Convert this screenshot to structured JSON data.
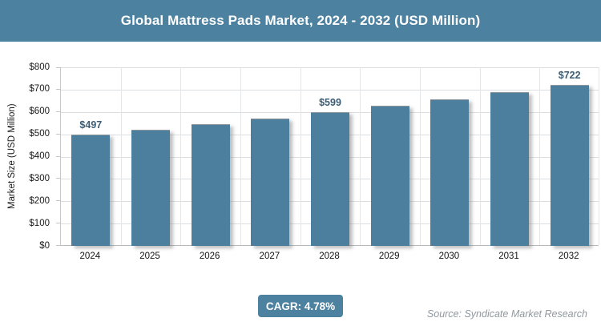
{
  "chart_data": {
    "type": "bar",
    "title": "Global Mattress Pads Market, 2024 - 2032 (USD Million)",
    "categories": [
      "2024",
      "2025",
      "2026",
      "2027",
      "2028",
      "2029",
      "2030",
      "2031",
      "2032"
    ],
    "values": [
      497,
      521,
      546,
      572,
      599,
      628,
      658,
      689,
      722
    ],
    "bar_labels": [
      "$497",
      "",
      "",
      "",
      "$599",
      "",
      "",
      "",
      "$722"
    ],
    "xlabel": "",
    "ylabel": "Market Size (USD Million)",
    "ylim": [
      0,
      800
    ],
    "ytick_step": 100,
    "ytick_labels": [
      "$0",
      "$100",
      "$200",
      "$300",
      "$400",
      "$500",
      "$600",
      "$700",
      "$800"
    ],
    "grid": true,
    "legend_position": "none"
  },
  "footer": {
    "cagr_label": "CAGR: 4.78%",
    "source": "Source: Syndicate Market Research"
  },
  "colors": {
    "header_bg": "#4d81a0",
    "badge_bg": "#4d81a0",
    "bar": "#4b7f9d",
    "bar_label_text": "#3d5d74",
    "gridline": "#dcdfe1",
    "source_text": "#8f999e"
  }
}
